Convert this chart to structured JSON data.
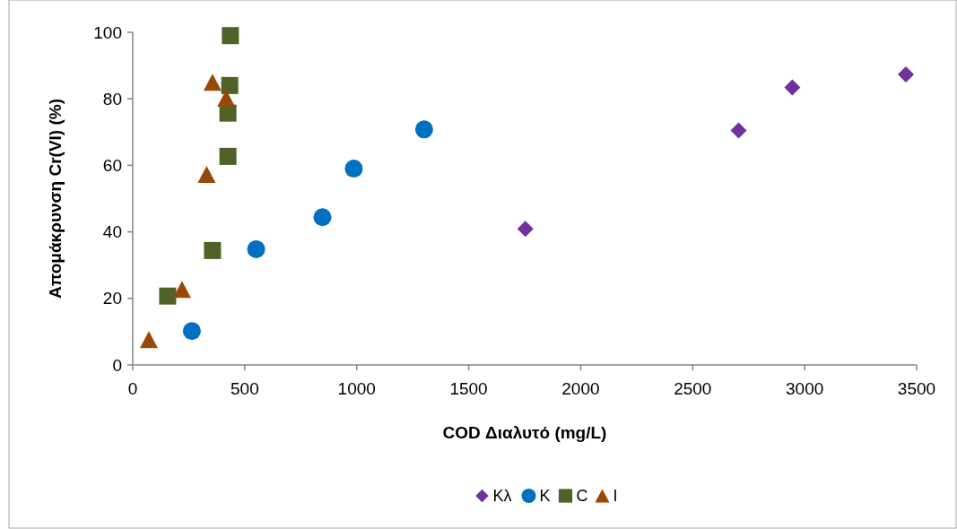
{
  "chart_data": {
    "type": "scatter",
    "xlabel": "COD Διαλυτό (mg/L)",
    "ylabel": "Απομάκρυνση Cr(VI) (%)",
    "xlim": [
      0,
      3500
    ],
    "xticks": [
      0,
      500,
      1000,
      1500,
      2000,
      2500,
      3000,
      3500
    ],
    "ylim": [
      0,
      100
    ],
    "yticks": [
      0,
      20,
      40,
      60,
      80,
      100
    ],
    "grid": false,
    "legend": "bottom",
    "series": [
      {
        "name": "Κλ",
        "color": "#7030a0",
        "marker": "diamond",
        "x": [
          1753,
          2705,
          2945,
          3452
        ],
        "values": [
          40.9,
          70.5,
          83.4,
          87.3
        ]
      },
      {
        "name": "Κ",
        "color": "#0070c0",
        "marker": "circle",
        "x": [
          264,
          551,
          847,
          987,
          1301
        ],
        "values": [
          10.2,
          34.8,
          44.4,
          59.0,
          70.8
        ]
      },
      {
        "name": "C",
        "color": "#4f6228",
        "marker": "square",
        "x": [
          156,
          356,
          425,
          425,
          433,
          436
        ],
        "values": [
          20.7,
          34.4,
          62.7,
          75.7,
          84.0,
          99.0
        ]
      },
      {
        "name": "I",
        "color": "#984807",
        "marker": "triangle",
        "x": [
          72,
          220,
          330,
          356,
          417
        ],
        "values": [
          7.6,
          22.7,
          57.3,
          85,
          80.2
        ]
      }
    ]
  }
}
